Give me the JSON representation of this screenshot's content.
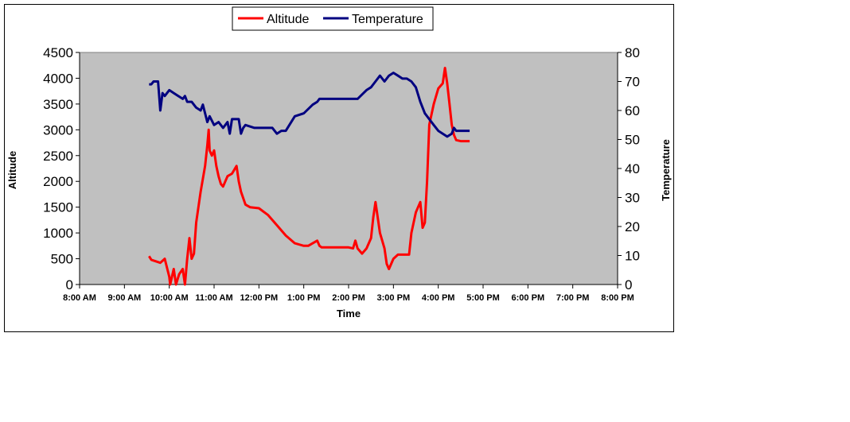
{
  "chart_data": {
    "type": "line",
    "title": "",
    "xlabel": "Time",
    "ylabel_left": "Altitude",
    "ylabel_right": "Temperature",
    "x_ticks": [
      "8:00 AM",
      "9:00 AM",
      "10:00 AM",
      "11:00 AM",
      "12:00 PM",
      "1:00 PM",
      "2:00 PM",
      "3:00 PM",
      "4:00 PM",
      "5:00 PM",
      "6:00 PM",
      "7:00 PM",
      "8:00 PM"
    ],
    "x_range_hours": [
      8,
      20
    ],
    "ylim_left": [
      0,
      4500
    ],
    "yticks_left": [
      "0",
      "500",
      "1000",
      "1500",
      "2000",
      "2500",
      "3000",
      "3500",
      "4000",
      "4500"
    ],
    "ylim_right": [
      0,
      80
    ],
    "yticks_right": [
      "0",
      "10",
      "20",
      "30",
      "40",
      "50",
      "60",
      "70",
      "80"
    ],
    "legend_position": "top-center",
    "grid": false,
    "plot_background": "#c0c0c0",
    "series": [
      {
        "name": "Altitude",
        "axis": "left",
        "color": "#ff0000",
        "x_hours": [
          9.55,
          9.6,
          9.7,
          9.8,
          9.9,
          10.0,
          10.02,
          10.1,
          10.15,
          10.22,
          10.3,
          10.35,
          10.4,
          10.45,
          10.5,
          10.55,
          10.6,
          10.7,
          10.8,
          10.85,
          10.88,
          10.9,
          10.95,
          11.0,
          11.05,
          11.1,
          11.15,
          11.2,
          11.3,
          11.4,
          11.5,
          11.55,
          11.6,
          11.7,
          11.8,
          12.0,
          12.2,
          12.4,
          12.6,
          12.8,
          13.0,
          13.1,
          13.2,
          13.3,
          13.35,
          13.4,
          13.6,
          13.8,
          14.0,
          14.1,
          14.15,
          14.2,
          14.3,
          14.4,
          14.5,
          14.55,
          14.6,
          14.7,
          14.8,
          14.85,
          14.9,
          15.0,
          15.1,
          15.2,
          15.35,
          15.4,
          15.5,
          15.6,
          15.65,
          15.7,
          15.75,
          15.8,
          15.9,
          16.0,
          16.1,
          16.15,
          16.2,
          16.25,
          16.3,
          16.35,
          16.4,
          16.5,
          16.6,
          16.7
        ],
        "values": [
          550,
          480,
          450,
          420,
          500,
          150,
          0,
          300,
          0,
          200,
          300,
          0,
          500,
          900,
          500,
          600,
          1200,
          1800,
          2300,
          2700,
          3000,
          2600,
          2500,
          2600,
          2300,
          2100,
          1950,
          1900,
          2100,
          2150,
          2300,
          2000,
          1800,
          1550,
          1500,
          1480,
          1350,
          1150,
          950,
          800,
          750,
          750,
          800,
          850,
          750,
          720,
          720,
          720,
          720,
          700,
          850,
          700,
          600,
          700,
          900,
          1300,
          1600,
          1000,
          700,
          400,
          300,
          500,
          580,
          580,
          580,
          1000,
          1400,
          1600,
          1100,
          1200,
          2000,
          3100,
          3500,
          3800,
          3900,
          4200,
          3900,
          3500,
          3100,
          2900,
          2800,
          2780,
          2780,
          2780
        ]
      },
      {
        "name": "Temperature",
        "axis": "right",
        "color": "#000080",
        "x_hours": [
          9.55,
          9.6,
          9.65,
          9.75,
          9.8,
          9.85,
          9.9,
          10.0,
          10.1,
          10.2,
          10.3,
          10.35,
          10.4,
          10.5,
          10.6,
          10.7,
          10.75,
          10.8,
          10.85,
          10.9,
          11.0,
          11.1,
          11.2,
          11.3,
          11.35,
          11.4,
          11.45,
          11.5,
          11.55,
          11.6,
          11.65,
          11.7,
          11.9,
          12.1,
          12.2,
          12.3,
          12.4,
          12.5,
          12.6,
          12.8,
          13.0,
          13.2,
          13.3,
          13.35,
          13.4,
          13.6,
          13.8,
          14.0,
          14.2,
          14.4,
          14.5,
          14.6,
          14.7,
          14.8,
          14.9,
          15.0,
          15.1,
          15.2,
          15.3,
          15.4,
          15.5,
          15.6,
          15.7,
          15.8,
          15.9,
          16.0,
          16.1,
          16.2,
          16.3,
          16.35,
          16.4,
          16.5,
          16.7
        ],
        "values": [
          69,
          69,
          70,
          70,
          60,
          66,
          65,
          67,
          66,
          65,
          64,
          65,
          63,
          63,
          61,
          60,
          62,
          59,
          56,
          58,
          55,
          56,
          54,
          56,
          52,
          57,
          57,
          57,
          57,
          52,
          54,
          55,
          54,
          54,
          54,
          54,
          52,
          53,
          53,
          58,
          59,
          62,
          63,
          64,
          64,
          64,
          64,
          64,
          64,
          67,
          68,
          70,
          72,
          70,
          72,
          73,
          72,
          71,
          71,
          70,
          68,
          63,
          59,
          57,
          55,
          53,
          52,
          51,
          52,
          54,
          53,
          53,
          53
        ]
      }
    ]
  }
}
